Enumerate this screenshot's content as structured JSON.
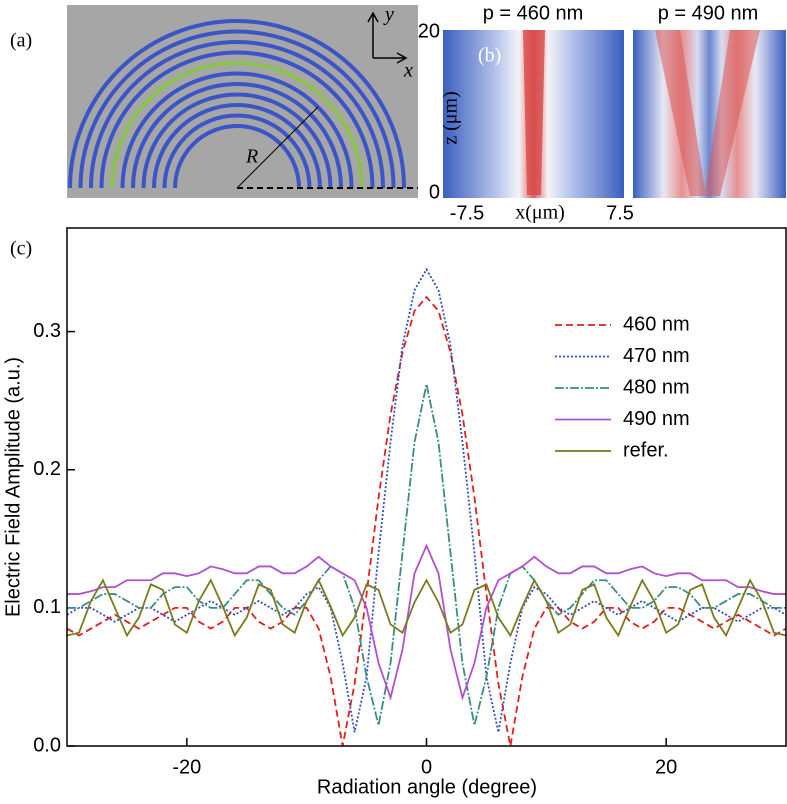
{
  "panel_a": {
    "label": "(a)",
    "y_axis": "y",
    "x_axis": "x",
    "radius": "R"
  },
  "panel_b": {
    "label": "(b)",
    "titles": [
      "p = 460 nm",
      "p = 490 nm"
    ],
    "z_ticks": [
      "20",
      "0"
    ],
    "z_label": "z (μm)",
    "x_ticks": [
      "-7.5",
      "7.5"
    ],
    "x_label": "x(μm)"
  },
  "chart_data": {
    "type": "line",
    "label": "(c)",
    "x_label": "Radiation angle (degree)",
    "y_label": "Electric Field Amplitude (a.u.)",
    "xlim": [
      -30,
      30
    ],
    "xticks": [
      -20,
      0,
      20
    ],
    "ylim": [
      0,
      0.375
    ],
    "yticks": [
      {
        "value": 0,
        "label": "0.0"
      },
      0.1,
      0.2,
      0.3
    ],
    "legend": "upper right",
    "x": [
      -30,
      -29,
      -28,
      -27,
      -26,
      -25,
      -24,
      -23,
      -22,
      -21,
      -20,
      -19,
      -18,
      -17,
      -16,
      -15,
      -14,
      -13,
      -12,
      -11,
      -10,
      -9,
      -8,
      -7,
      -6,
      -5,
      -4,
      -3,
      -2,
      -1,
      0,
      1,
      2,
      3,
      4,
      5,
      6,
      7,
      8,
      9,
      10,
      11,
      12,
      13,
      14,
      15,
      16,
      17,
      18,
      19,
      20,
      21,
      22,
      23,
      24,
      25,
      26,
      27,
      28,
      29,
      30
    ],
    "series": [
      {
        "name": "460 nm",
        "color": "#e0201b",
        "dash": "7,4",
        "values": [
          0.085,
          0.08,
          0.085,
          0.09,
          0.095,
          0.09,
          0.085,
          0.09,
          0.095,
          0.1,
          0.1,
          0.09,
          0.085,
          0.09,
          0.1,
          0.1,
          0.09,
          0.085,
          0.09,
          0.1,
          0.1,
          0.085,
          0.05,
          0,
          0.045,
          0.11,
          0.18,
          0.24,
          0.285,
          0.315,
          0.325,
          0.315,
          0.285,
          0.24,
          0.18,
          0.11,
          0.045,
          0,
          0.05,
          0.085,
          0.1,
          0.1,
          0.09,
          0.085,
          0.09,
          0.1,
          0.1,
          0.09,
          0.085,
          0.09,
          0.1,
          0.1,
          0.095,
          0.09,
          0.085,
          0.09,
          0.095,
          0.09,
          0.085,
          0.08,
          0.085
        ]
      },
      {
        "name": "470 nm",
        "color": "#2f4fc0",
        "dash": "2,2",
        "values": [
          0.095,
          0.1,
          0.1,
          0.095,
          0.09,
          0.095,
          0.1,
          0.1,
          0.095,
          0.09,
          0.095,
          0.1,
          0.105,
          0.1,
          0.095,
          0.1,
          0.105,
          0.1,
          0.095,
          0.1,
          0.11,
          0.115,
          0.1,
          0.06,
          0.01,
          0.05,
          0.14,
          0.22,
          0.29,
          0.33,
          0.345,
          0.33,
          0.29,
          0.22,
          0.14,
          0.05,
          0.01,
          0.06,
          0.1,
          0.115,
          0.11,
          0.1,
          0.095,
          0.1,
          0.105,
          0.1,
          0.095,
          0.1,
          0.105,
          0.1,
          0.095,
          0.09,
          0.095,
          0.1,
          0.1,
          0.095,
          0.09,
          0.095,
          0.1,
          0.1,
          0.095
        ]
      },
      {
        "name": "480 nm",
        "color": "#3a8c84",
        "dash": "9,2,2,2",
        "values": [
          0.1,
          0.1,
          0.105,
          0.11,
          0.11,
          0.105,
          0.1,
          0.1,
          0.11,
          0.115,
          0.115,
          0.105,
          0.1,
          0.1,
          0.11,
          0.12,
          0.12,
          0.11,
          0.1,
          0.095,
          0.105,
          0.12,
          0.13,
          0.125,
          0.1,
          0.05,
          0.015,
          0.06,
          0.14,
          0.22,
          0.262,
          0.22,
          0.14,
          0.06,
          0.015,
          0.05,
          0.1,
          0.125,
          0.13,
          0.12,
          0.105,
          0.095,
          0.1,
          0.11,
          0.12,
          0.12,
          0.11,
          0.1,
          0.1,
          0.105,
          0.115,
          0.115,
          0.11,
          0.1,
          0.1,
          0.105,
          0.11,
          0.11,
          0.105,
          0.1,
          0.1
        ]
      },
      {
        "name": "490 nm",
        "color": "#b050d0",
        "dash": "none",
        "values": [
          0.11,
          0.11,
          0.112,
          0.115,
          0.115,
          0.12,
          0.12,
          0.12,
          0.125,
          0.125,
          0.123,
          0.125,
          0.13,
          0.128,
          0.125,
          0.125,
          0.13,
          0.13,
          0.125,
          0.125,
          0.13,
          0.137,
          0.13,
          0.125,
          0.12,
          0.1,
          0.06,
          0.035,
          0.07,
          0.125,
          0.145,
          0.125,
          0.07,
          0.035,
          0.06,
          0.1,
          0.12,
          0.125,
          0.13,
          0.137,
          0.13,
          0.125,
          0.125,
          0.13,
          0.13,
          0.125,
          0.125,
          0.128,
          0.13,
          0.125,
          0.123,
          0.125,
          0.125,
          0.12,
          0.12,
          0.12,
          0.115,
          0.115,
          0.112,
          0.11,
          0.11
        ]
      },
      {
        "name": "refer.",
        "color": "#7a7a20",
        "dash": "none",
        "values": [
          0.08,
          0.082,
          0.105,
          0.12,
          0.1,
          0.08,
          0.093,
          0.117,
          0.113,
          0.088,
          0.082,
          0.105,
          0.12,
          0.101,
          0.08,
          0.093,
          0.117,
          0.113,
          0.088,
          0.082,
          0.105,
          0.12,
          0.101,
          0.08,
          0.093,
          0.117,
          0.113,
          0.088,
          0.082,
          0.104,
          0.12,
          0.104,
          0.082,
          0.088,
          0.113,
          0.117,
          0.093,
          0.08,
          0.101,
          0.12,
          0.105,
          0.082,
          0.088,
          0.113,
          0.117,
          0.093,
          0.08,
          0.101,
          0.12,
          0.105,
          0.082,
          0.088,
          0.113,
          0.117,
          0.093,
          0.08,
          0.1,
          0.12,
          0.105,
          0.082,
          0.08
        ]
      }
    ]
  }
}
